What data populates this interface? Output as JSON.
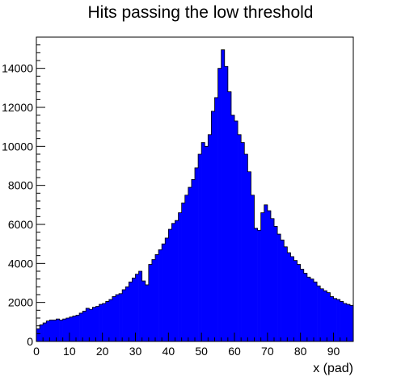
{
  "chart_data": {
    "type": "bar",
    "title": "Hits passing the low threshold",
    "xlabel": "x (pad)",
    "ylabel": "",
    "xlim": [
      0,
      96
    ],
    "ylim": [
      0,
      15600
    ],
    "bar_color": "#0000ff",
    "grid": false,
    "legend": "none",
    "x_ticks": [
      0,
      10,
      20,
      30,
      40,
      50,
      60,
      70,
      80,
      90
    ],
    "y_ticks": [
      0,
      2000,
      4000,
      6000,
      8000,
      10000,
      12000,
      14000
    ],
    "x_tick_labels": [
      "0",
      "10",
      "20",
      "30",
      "40",
      "50",
      "60",
      "70",
      "80",
      "90"
    ],
    "y_tick_labels": [
      "0",
      "2000",
      "4000",
      "6000",
      "8000",
      "10000",
      "12000",
      "14000"
    ],
    "bin_edges_start": 0,
    "bin_width": 1,
    "values": [
      650,
      850,
      950,
      1050,
      1100,
      1100,
      1150,
      1100,
      1150,
      1200,
      1250,
      1300,
      1350,
      1450,
      1550,
      1700,
      1650,
      1750,
      1800,
      1900,
      1950,
      2050,
      2150,
      2300,
      2400,
      2450,
      2650,
      2800,
      3050,
      3250,
      3450,
      3600,
      3100,
      2900,
      3950,
      4200,
      4450,
      4700,
      5000,
      5300,
      5750,
      6050,
      6200,
      6600,
      7100,
      7500,
      7900,
      8300,
      8900,
      9600,
      10200,
      10000,
      10600,
      11800,
      12500,
      14000,
      14950,
      14100,
      12800,
      11600,
      11300,
      10600,
      10200,
      9600,
      8700,
      7500,
      5800,
      5700,
      6600,
      7000,
      6700,
      6300,
      5900,
      5500,
      5200,
      4850,
      4550,
      4350,
      4150,
      3950,
      3700,
      3500,
      3300,
      3200,
      3050,
      2850,
      2700,
      2600,
      2500,
      2300,
      2200,
      2150,
      2050,
      1950,
      1900,
      1850
    ]
  }
}
